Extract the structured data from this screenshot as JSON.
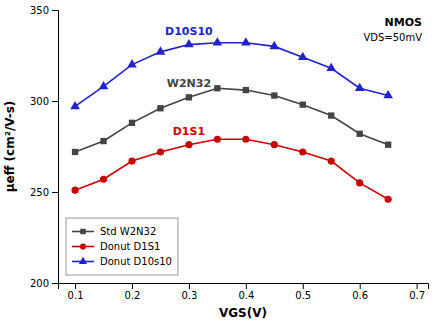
{
  "chart_data": {
    "type": "line",
    "x_label": "VGS(V)",
    "y_label": "μeff (cm²/V-s)",
    "x": [
      0.1,
      0.15,
      0.2,
      0.25,
      0.3,
      0.35,
      0.4,
      0.45,
      0.5,
      0.55,
      0.6,
      0.65
    ],
    "series": [
      {
        "name": "Std W2N32",
        "color": "#444444",
        "marker": "square",
        "values": [
          272,
          278,
          288,
          296,
          302,
          307,
          306,
          303,
          298,
          292,
          282,
          276
        ]
      },
      {
        "name": "Donut D1S1",
        "color": "#cc0000",
        "marker": "circle",
        "values": [
          251,
          257,
          267,
          272,
          276,
          279,
          279,
          276,
          272,
          267,
          255,
          246
        ]
      },
      {
        "name": "Donut D10s10",
        "color": "#2222cc",
        "marker": "triangle",
        "values": [
          297,
          308,
          320,
          327,
          331,
          332,
          332,
          330,
          324,
          318,
          307,
          303
        ]
      }
    ],
    "annotations": [
      "W2N32",
      "D1S1",
      "D10S10",
      "NMOS",
      "VDS=50mV"
    ],
    "xlim": [
      0.07,
      0.72
    ],
    "ylim": [
      200,
      350
    ],
    "xticks": [
      0.1,
      0.2,
      0.3,
      0.4,
      0.5,
      0.6,
      0.7
    ],
    "yticks": [
      200,
      250,
      300,
      350
    ],
    "grid": false,
    "legend": "lower left"
  }
}
